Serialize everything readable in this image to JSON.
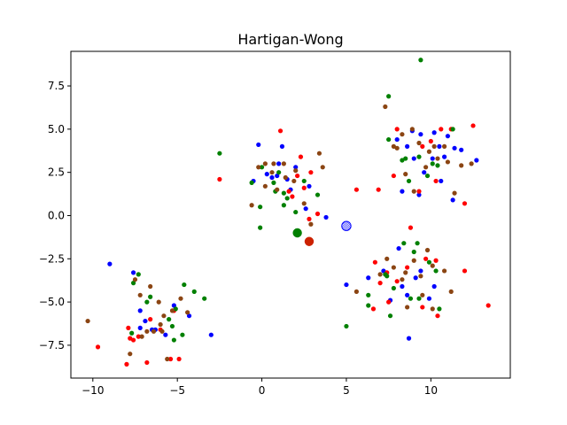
{
  "chart_data": {
    "type": "scatter",
    "title": "Hartigan-Wong",
    "xlabel": "",
    "ylabel": "",
    "xlim": [
      -11.3,
      14.7
    ],
    "ylim": [
      -9.4,
      9.5
    ],
    "xticks": [
      -10,
      -5,
      0,
      5,
      10
    ],
    "xtick_labels": [
      "−10",
      "−5",
      "0",
      "5",
      "10"
    ],
    "yticks": [
      -7.5,
      -5.0,
      -2.5,
      0.0,
      2.5,
      5.0,
      7.5
    ],
    "ytick_labels": [
      "−7.5",
      "−5.0",
      "−2.5",
      "0.0",
      "2.5",
      "5.0",
      "7.5"
    ],
    "grid": false,
    "series": [
      {
        "color": "#0000ff",
        "points": [
          [
            -9.0,
            -2.8
          ],
          [
            -7.6,
            -3.3
          ],
          [
            -7.2,
            -5.5
          ],
          [
            -6.9,
            -6.1
          ],
          [
            -6.3,
            -6.6
          ],
          [
            -5.7,
            -6.9
          ],
          [
            -5.2,
            -5.2
          ],
          [
            -4.3,
            -5.8
          ],
          [
            -3.0,
            -6.9
          ],
          [
            -7.2,
            -6.5
          ],
          [
            -6.5,
            -6.6
          ],
          [
            -0.2,
            4.1
          ],
          [
            0.3,
            2.4
          ],
          [
            1.0,
            3.0
          ],
          [
            1.2,
            4.0
          ],
          [
            1.5,
            2.1
          ],
          [
            2.0,
            2.8
          ],
          [
            2.8,
            1.7
          ],
          [
            3.8,
            -0.1
          ],
          [
            2.6,
            0.4
          ],
          [
            0.6,
            2.2
          ],
          [
            1.7,
            1.5
          ],
          [
            0.9,
            2.3
          ],
          [
            -0.5,
            2.0
          ],
          [
            8.0,
            4.4
          ],
          [
            8.6,
            4.0
          ],
          [
            9.0,
            3.3
          ],
          [
            9.4,
            4.7
          ],
          [
            10.2,
            4.8
          ],
          [
            10.5,
            4.0
          ],
          [
            11.0,
            4.6
          ],
          [
            11.4,
            3.9
          ],
          [
            11.8,
            3.8
          ],
          [
            12.7,
            3.2
          ],
          [
            10.1,
            3.3
          ],
          [
            9.6,
            2.5
          ],
          [
            8.3,
            1.4
          ],
          [
            9.3,
            1.2
          ],
          [
            10.6,
            2.0
          ],
          [
            11.3,
            0.9
          ],
          [
            8.9,
            4.9
          ],
          [
            10.8,
            3.4
          ],
          [
            5.0,
            -4.0
          ],
          [
            6.3,
            -3.6
          ],
          [
            7.2,
            -3.2
          ],
          [
            7.6,
            -4.9
          ],
          [
            8.3,
            -4.1
          ],
          [
            8.6,
            -4.6
          ],
          [
            9.1,
            -3.6
          ],
          [
            9.4,
            -3.2
          ],
          [
            10.2,
            -4.1
          ],
          [
            8.7,
            -7.1
          ],
          [
            9.9,
            -4.8
          ],
          [
            8.1,
            -1.9
          ]
        ]
      },
      {
        "color": "#ff0000",
        "points": [
          [
            -9.7,
            -7.6
          ],
          [
            -8.0,
            -8.6
          ],
          [
            -7.8,
            -7.1
          ],
          [
            -7.6,
            -7.2
          ],
          [
            -7.3,
            -7.0
          ],
          [
            -6.8,
            -8.5
          ],
          [
            -6.0,
            -6.6
          ],
          [
            -5.4,
            -8.3
          ],
          [
            -4.9,
            -8.3
          ],
          [
            -5.2,
            -5.5
          ],
          [
            -6.6,
            -6.0
          ],
          [
            -7.9,
            -6.5
          ],
          [
            -2.5,
            2.1
          ],
          [
            1.1,
            4.9
          ],
          [
            2.3,
            3.4
          ],
          [
            1.6,
            1.4
          ],
          [
            1.8,
            1.1
          ],
          [
            2.5,
            1.6
          ],
          [
            2.8,
            -0.2
          ],
          [
            3.3,
            0.1
          ],
          [
            2.1,
            2.3
          ],
          [
            5.6,
            1.5
          ],
          [
            6.9,
            1.5
          ],
          [
            7.8,
            2.3
          ],
          [
            2.9,
            2.5
          ],
          [
            8.0,
            5.0
          ],
          [
            9.5,
            4.0
          ],
          [
            11.2,
            5.0
          ],
          [
            12.5,
            5.2
          ],
          [
            12.0,
            0.7
          ],
          [
            10.3,
            2.0
          ],
          [
            9.3,
            1.4
          ],
          [
            10.0,
            4.3
          ],
          [
            10.6,
            5.0
          ],
          [
            6.7,
            -2.7
          ],
          [
            7.4,
            -3.3
          ],
          [
            8.8,
            -0.7
          ],
          [
            9.7,
            -2.5
          ],
          [
            10.3,
            -2.6
          ],
          [
            12.0,
            -3.2
          ],
          [
            13.4,
            -5.2
          ],
          [
            7.5,
            -5.0
          ],
          [
            8.6,
            -3.0
          ],
          [
            9.5,
            -5.3
          ],
          [
            10.4,
            -5.8
          ],
          [
            8.0,
            -3.8
          ],
          [
            7.0,
            -3.9
          ],
          [
            6.6,
            -5.4
          ]
        ]
      },
      {
        "color": "#008000",
        "points": [
          [
            -7.6,
            -3.9
          ],
          [
            -7.3,
            -3.4
          ],
          [
            -6.8,
            -5.0
          ],
          [
            -6.6,
            -4.7
          ],
          [
            -5.5,
            -6.0
          ],
          [
            -4.6,
            -4.0
          ],
          [
            -4.0,
            -4.4
          ],
          [
            -3.4,
            -4.8
          ],
          [
            -4.7,
            -6.9
          ],
          [
            -5.3,
            -6.4
          ],
          [
            -5.1,
            -5.4
          ],
          [
            -7.7,
            -6.8
          ],
          [
            -5.2,
            -7.2
          ],
          [
            -2.5,
            3.6
          ],
          [
            -0.6,
            1.9
          ],
          [
            -0.1,
            0.5
          ],
          [
            0.0,
            2.8
          ],
          [
            0.7,
            1.9
          ],
          [
            0.8,
            1.4
          ],
          [
            1.3,
            1.3
          ],
          [
            1.5,
            1.0
          ],
          [
            2.0,
            0.2
          ],
          [
            2.5,
            2.0
          ],
          [
            3.3,
            1.2
          ],
          [
            -0.1,
            -0.7
          ],
          [
            1.3,
            0.6
          ],
          [
            1.0,
            2.5
          ],
          [
            7.5,
            6.9
          ],
          [
            9.4,
            9.0
          ],
          [
            8.3,
            3.2
          ],
          [
            8.5,
            3.3
          ],
          [
            9.3,
            3.4
          ],
          [
            10.1,
            3.0
          ],
          [
            11.3,
            5.0
          ],
          [
            10.4,
            2.9
          ],
          [
            7.5,
            4.4
          ],
          [
            8.7,
            2.0
          ],
          [
            9.8,
            2.3
          ],
          [
            6.3,
            -4.6
          ],
          [
            6.3,
            -5.2
          ],
          [
            7.3,
            -3.4
          ],
          [
            7.4,
            -3.5
          ],
          [
            7.8,
            -4.2
          ],
          [
            8.4,
            -1.6
          ],
          [
            9.2,
            -1.6
          ],
          [
            9.9,
            -2.7
          ],
          [
            10.3,
            -3.2
          ],
          [
            8.8,
            -4.8
          ],
          [
            9.3,
            -4.8
          ],
          [
            10.5,
            -5.4
          ],
          [
            7.6,
            -5.8
          ],
          [
            5.0,
            -6.4
          ],
          [
            9.0,
            -2.1
          ]
        ]
      },
      {
        "color": "#8b4513",
        "points": [
          [
            -10.3,
            -6.1
          ],
          [
            -7.8,
            -8.0
          ],
          [
            -7.2,
            -4.6
          ],
          [
            -6.6,
            -4.1
          ],
          [
            -6.1,
            -5.0
          ],
          [
            -5.8,
            -5.8
          ],
          [
            -5.3,
            -5.5
          ],
          [
            -4.8,
            -4.8
          ],
          [
            -4.4,
            -5.6
          ],
          [
            -5.6,
            -8.3
          ],
          [
            -6.4,
            -6.7
          ],
          [
            -6.8,
            -6.7
          ],
          [
            -7.1,
            -7.0
          ],
          [
            -5.9,
            -6.7
          ],
          [
            -7.5,
            -3.7
          ],
          [
            -6.0,
            -6.3
          ],
          [
            -0.6,
            0.6
          ],
          [
            -0.2,
            2.8
          ],
          [
            0.2,
            3.0
          ],
          [
            0.6,
            2.5
          ],
          [
            0.7,
            3.0
          ],
          [
            1.3,
            3.0
          ],
          [
            1.4,
            2.2
          ],
          [
            2.0,
            2.6
          ],
          [
            3.4,
            3.6
          ],
          [
            3.6,
            2.8
          ],
          [
            2.9,
            -0.5
          ],
          [
            0.9,
            1.5
          ],
          [
            0.2,
            1.7
          ],
          [
            2.5,
            0.7
          ],
          [
            1.9,
            2.0
          ],
          [
            7.3,
            6.3
          ],
          [
            7.8,
            4.0
          ],
          [
            8.3,
            4.7
          ],
          [
            8.9,
            5.0
          ],
          [
            9.3,
            4.2
          ],
          [
            9.9,
            3.7
          ],
          [
            10.4,
            3.3
          ],
          [
            11.0,
            3.1
          ],
          [
            11.8,
            2.9
          ],
          [
            9.0,
            1.4
          ],
          [
            10.8,
            4.0
          ],
          [
            12.4,
            3.0
          ],
          [
            8.0,
            3.9
          ],
          [
            11.4,
            1.3
          ],
          [
            10.2,
            4.0
          ],
          [
            9.7,
            2.8
          ],
          [
            8.5,
            2.4
          ],
          [
            5.6,
            -4.4
          ],
          [
            7.0,
            -3.4
          ],
          [
            7.8,
            -3.0
          ],
          [
            8.5,
            -3.3
          ],
          [
            9.0,
            -2.6
          ],
          [
            9.4,
            -3.5
          ],
          [
            10.1,
            -2.9
          ],
          [
            10.8,
            -3.2
          ],
          [
            11.2,
            -4.4
          ],
          [
            8.6,
            -5.3
          ],
          [
            9.5,
            -4.6
          ],
          [
            10.1,
            -5.4
          ],
          [
            7.4,
            -2.5
          ],
          [
            9.8,
            -2.0
          ],
          [
            8.3,
            -3.7
          ]
        ]
      }
    ],
    "centroids": [
      {
        "x": 5.0,
        "y": -0.6,
        "color": "#0000ff",
        "style": "hatched"
      },
      {
        "x": 2.1,
        "y": -1.0,
        "color": "#008000",
        "style": "filled"
      },
      {
        "x": 2.8,
        "y": -1.5,
        "color": "#cc2200",
        "style": "filled"
      }
    ]
  }
}
